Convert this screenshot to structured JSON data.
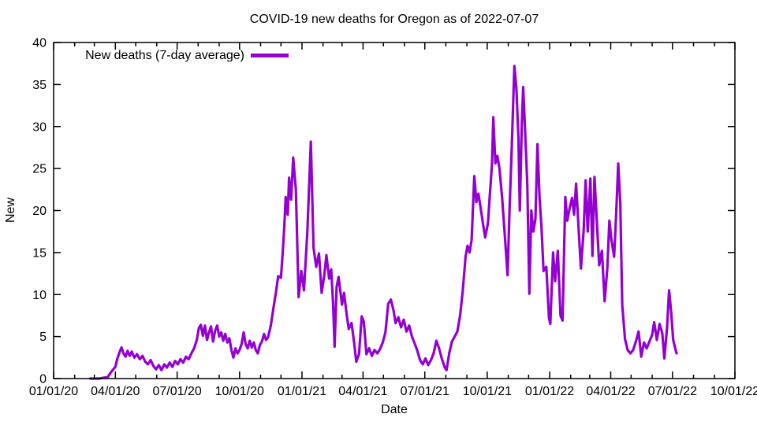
{
  "window": {
    "background": "#ffffff"
  },
  "colors": {
    "series": "#9400d3",
    "axis": "#000000",
    "text": "#000000"
  },
  "chart_data": {
    "type": "line",
    "title": "COVID-19 new deaths for Oregon as of 2022-07-07",
    "xlabel": "Date",
    "ylabel": "New",
    "grid": false,
    "legend_position": "top-left-inside",
    "legend_entries": [
      "New deaths (7-day average)"
    ],
    "x_range": [
      "2020-01-01",
      "2022-10-01"
    ],
    "ylim": [
      0,
      40
    ],
    "y_tick_step": 5,
    "y_tick_labels": [
      "0",
      "5",
      "10",
      "15",
      "20",
      "25",
      "30",
      "35",
      "40"
    ],
    "x_major_tick_labels": [
      "01/01/20",
      "04/01/20",
      "07/01/20",
      "10/01/20",
      "01/01/21",
      "04/01/21",
      "07/01/21",
      "10/01/21",
      "01/01/22",
      "04/01/22",
      "07/01/22",
      "10/01/22"
    ],
    "x_minor_tick_interval": "1 month",
    "series": [
      {
        "name": "New deaths (7-day average)",
        "color": "#9400d3",
        "points": [
          [
            "2020-02-24",
            0
          ],
          [
            "2020-03-08",
            0
          ],
          [
            "2020-03-21",
            0.2
          ],
          [
            "2020-03-25",
            0.7
          ],
          [
            "2020-03-29",
            1.1
          ],
          [
            "2020-04-01",
            1.4
          ],
          [
            "2020-04-04",
            2.4
          ],
          [
            "2020-04-07",
            3.1
          ],
          [
            "2020-04-10",
            3.7
          ],
          [
            "2020-04-13",
            3.0
          ],
          [
            "2020-04-16",
            2.6
          ],
          [
            "2020-04-19",
            3.3
          ],
          [
            "2020-04-22",
            2.7
          ],
          [
            "2020-04-25",
            3.2
          ],
          [
            "2020-04-29",
            2.5
          ],
          [
            "2020-05-03",
            2.9
          ],
          [
            "2020-05-07",
            2.3
          ],
          [
            "2020-05-11",
            2.7
          ],
          [
            "2020-05-15",
            2.0
          ],
          [
            "2020-05-19",
            1.7
          ],
          [
            "2020-05-23",
            2.2
          ],
          [
            "2020-05-27",
            1.5
          ],
          [
            "2020-05-31",
            1.1
          ],
          [
            "2020-06-04",
            1.6
          ],
          [
            "2020-06-08",
            1.0
          ],
          [
            "2020-06-12",
            1.7
          ],
          [
            "2020-06-16",
            1.3
          ],
          [
            "2020-06-20",
            1.9
          ],
          [
            "2020-06-24",
            1.4
          ],
          [
            "2020-06-28",
            2.1
          ],
          [
            "2020-07-02",
            1.7
          ],
          [
            "2020-07-06",
            2.3
          ],
          [
            "2020-07-10",
            1.9
          ],
          [
            "2020-07-14",
            2.6
          ],
          [
            "2020-07-18",
            2.3
          ],
          [
            "2020-07-22",
            3.0
          ],
          [
            "2020-07-26",
            3.6
          ],
          [
            "2020-07-30",
            4.6
          ],
          [
            "2020-08-02",
            6.0
          ],
          [
            "2020-08-05",
            6.4
          ],
          [
            "2020-08-08",
            5.1
          ],
          [
            "2020-08-11",
            6.3
          ],
          [
            "2020-08-14",
            4.6
          ],
          [
            "2020-08-17",
            5.5
          ],
          [
            "2020-08-20",
            6.2
          ],
          [
            "2020-08-23",
            4.4
          ],
          [
            "2020-08-26",
            5.7
          ],
          [
            "2020-08-29",
            6.3
          ],
          [
            "2020-09-01",
            5.0
          ],
          [
            "2020-09-04",
            5.5
          ],
          [
            "2020-09-07",
            4.5
          ],
          [
            "2020-09-10",
            5.3
          ],
          [
            "2020-09-13",
            4.3
          ],
          [
            "2020-09-16",
            4.8
          ],
          [
            "2020-09-19",
            3.4
          ],
          [
            "2020-09-22",
            2.5
          ],
          [
            "2020-09-25",
            3.6
          ],
          [
            "2020-09-28",
            3.0
          ],
          [
            "2020-10-01",
            3.4
          ],
          [
            "2020-10-04",
            4.1
          ],
          [
            "2020-10-07",
            5.5
          ],
          [
            "2020-10-10",
            4.1
          ],
          [
            "2020-10-13",
            3.6
          ],
          [
            "2020-10-16",
            4.5
          ],
          [
            "2020-10-19",
            3.7
          ],
          [
            "2020-10-22",
            4.3
          ],
          [
            "2020-10-25",
            3.4
          ],
          [
            "2020-10-28",
            3.0
          ],
          [
            "2020-10-31",
            4.0
          ],
          [
            "2020-11-03",
            4.4
          ],
          [
            "2020-11-06",
            5.3
          ],
          [
            "2020-11-09",
            4.6
          ],
          [
            "2020-11-12",
            4.9
          ],
          [
            "2020-11-16",
            6.3
          ],
          [
            "2020-11-20",
            8.4
          ],
          [
            "2020-11-24",
            10.5
          ],
          [
            "2020-11-27",
            12.2
          ],
          [
            "2020-12-01",
            12.0
          ],
          [
            "2020-12-04",
            15.5
          ],
          [
            "2020-12-06",
            18.2
          ],
          [
            "2020-12-08",
            21.6
          ],
          [
            "2020-12-11",
            19.5
          ],
          [
            "2020-12-13",
            23.9
          ],
          [
            "2020-12-16",
            21.3
          ],
          [
            "2020-12-19",
            26.3
          ],
          [
            "2020-12-23",
            22.5
          ],
          [
            "2020-12-27",
            9.7
          ],
          [
            "2020-12-31",
            12.8
          ],
          [
            "2021-01-04",
            10.5
          ],
          [
            "2021-01-09",
            17.5
          ],
          [
            "2021-01-14",
            28.2
          ],
          [
            "2021-01-18",
            15.6
          ],
          [
            "2021-01-22",
            13.3
          ],
          [
            "2021-01-26",
            14.9
          ],
          [
            "2021-01-30",
            10.2
          ],
          [
            "2021-02-03",
            12.4
          ],
          [
            "2021-02-06",
            14.7
          ],
          [
            "2021-02-10",
            11.9
          ],
          [
            "2021-02-13",
            13.0
          ],
          [
            "2021-02-16",
            8.8
          ],
          [
            "2021-02-18",
            3.8
          ],
          [
            "2021-02-21",
            10.9
          ],
          [
            "2021-02-24",
            12.1
          ],
          [
            "2021-03-01",
            8.8
          ],
          [
            "2021-03-04",
            10.2
          ],
          [
            "2021-03-08",
            7.5
          ],
          [
            "2021-03-11",
            5.9
          ],
          [
            "2021-03-15",
            6.6
          ],
          [
            "2021-03-19",
            4.2
          ],
          [
            "2021-03-22",
            2.0
          ],
          [
            "2021-03-26",
            2.9
          ],
          [
            "2021-03-30",
            7.4
          ],
          [
            "2021-04-02",
            6.8
          ],
          [
            "2021-04-06",
            2.9
          ],
          [
            "2021-04-10",
            3.6
          ],
          [
            "2021-04-14",
            2.7
          ],
          [
            "2021-04-18",
            3.4
          ],
          [
            "2021-04-22",
            3.0
          ],
          [
            "2021-04-26",
            3.5
          ],
          [
            "2021-04-30",
            4.3
          ],
          [
            "2021-05-04",
            5.5
          ],
          [
            "2021-05-08",
            8.9
          ],
          [
            "2021-05-12",
            9.4
          ],
          [
            "2021-05-16",
            8.1
          ],
          [
            "2021-05-19",
            6.6
          ],
          [
            "2021-05-23",
            7.3
          ],
          [
            "2021-05-27",
            6.1
          ],
          [
            "2021-05-31",
            7.0
          ],
          [
            "2021-06-04",
            5.6
          ],
          [
            "2021-06-08",
            6.3
          ],
          [
            "2021-06-12",
            5.0
          ],
          [
            "2021-06-16",
            4.2
          ],
          [
            "2021-06-20",
            3.3
          ],
          [
            "2021-06-24",
            2.2
          ],
          [
            "2021-06-28",
            1.7
          ],
          [
            "2021-07-02",
            2.4
          ],
          [
            "2021-07-06",
            1.6
          ],
          [
            "2021-07-10",
            2.2
          ],
          [
            "2021-07-14",
            3.0
          ],
          [
            "2021-07-18",
            4.5
          ],
          [
            "2021-07-22",
            3.6
          ],
          [
            "2021-07-26",
            2.4
          ],
          [
            "2021-07-30",
            1.4
          ],
          [
            "2021-08-02",
            1.0
          ],
          [
            "2021-08-06",
            3.0
          ],
          [
            "2021-08-10",
            4.4
          ],
          [
            "2021-08-14",
            5.0
          ],
          [
            "2021-08-18",
            5.6
          ],
          [
            "2021-08-22",
            7.5
          ],
          [
            "2021-08-26",
            10.5
          ],
          [
            "2021-08-30",
            14.5
          ],
          [
            "2021-09-02",
            15.8
          ],
          [
            "2021-09-05",
            15.0
          ],
          [
            "2021-09-08",
            16.5
          ],
          [
            "2021-09-12",
            24.1
          ],
          [
            "2021-09-15",
            21.0
          ],
          [
            "2021-09-18",
            22.0
          ],
          [
            "2021-09-21",
            20.5
          ],
          [
            "2021-09-25",
            18.3
          ],
          [
            "2021-09-28",
            16.8
          ],
          [
            "2021-10-02",
            18.5
          ],
          [
            "2021-10-05",
            22.0
          ],
          [
            "2021-10-08",
            25.5
          ],
          [
            "2021-10-10",
            31.1
          ],
          [
            "2021-10-13",
            25.6
          ],
          [
            "2021-10-16",
            26.5
          ],
          [
            "2021-10-19",
            25.0
          ],
          [
            "2021-10-23",
            21.5
          ],
          [
            "2021-10-27",
            16.9
          ],
          [
            "2021-10-31",
            12.3
          ],
          [
            "2021-11-03",
            20.5
          ],
          [
            "2021-11-06",
            27.2
          ],
          [
            "2021-11-10",
            37.2
          ],
          [
            "2021-11-13",
            34.5
          ],
          [
            "2021-11-16",
            28.5
          ],
          [
            "2021-11-18",
            20.0
          ],
          [
            "2021-11-21",
            30.5
          ],
          [
            "2021-11-23",
            34.7
          ],
          [
            "2021-11-26",
            29.1
          ],
          [
            "2021-11-29",
            23.2
          ],
          [
            "2021-12-02",
            10.1
          ],
          [
            "2021-12-05",
            20.0
          ],
          [
            "2021-12-08",
            17.5
          ],
          [
            "2021-12-11",
            19.0
          ],
          [
            "2021-12-14",
            27.9
          ],
          [
            "2021-12-17",
            21.6
          ],
          [
            "2021-12-20",
            18.0
          ],
          [
            "2021-12-23",
            12.8
          ],
          [
            "2021-12-27",
            13.3
          ],
          [
            "2021-12-31",
            7.2
          ],
          [
            "2022-01-02",
            6.5
          ],
          [
            "2022-01-06",
            15.0
          ],
          [
            "2022-01-09",
            11.6
          ],
          [
            "2022-01-13",
            15.2
          ],
          [
            "2022-01-17",
            7.5
          ],
          [
            "2022-01-20",
            6.9
          ],
          [
            "2022-01-24",
            21.6
          ],
          [
            "2022-01-27",
            18.8
          ],
          [
            "2022-01-31",
            20.5
          ],
          [
            "2022-02-03",
            21.5
          ],
          [
            "2022-02-06",
            19.5
          ],
          [
            "2022-02-09",
            23.2
          ],
          [
            "2022-02-13",
            17.3
          ],
          [
            "2022-02-16",
            13.1
          ],
          [
            "2022-02-20",
            17.5
          ],
          [
            "2022-02-23",
            23.6
          ],
          [
            "2022-02-26",
            17.5
          ],
          [
            "2022-03-02",
            23.8
          ],
          [
            "2022-03-05",
            14.6
          ],
          [
            "2022-03-08",
            24.0
          ],
          [
            "2022-03-12",
            18.0
          ],
          [
            "2022-03-15",
            13.5
          ],
          [
            "2022-03-19",
            15.2
          ],
          [
            "2022-03-23",
            9.2
          ],
          [
            "2022-03-27",
            13.2
          ],
          [
            "2022-03-30",
            18.8
          ],
          [
            "2022-04-02",
            16.5
          ],
          [
            "2022-04-06",
            14.5
          ],
          [
            "2022-04-09",
            19.5
          ],
          [
            "2022-04-12",
            25.6
          ],
          [
            "2022-04-15",
            21.0
          ],
          [
            "2022-04-18",
            8.8
          ],
          [
            "2022-04-22",
            4.7
          ],
          [
            "2022-04-26",
            3.4
          ],
          [
            "2022-04-30",
            3.0
          ],
          [
            "2022-05-04",
            3.4
          ],
          [
            "2022-05-08",
            4.4
          ],
          [
            "2022-05-12",
            5.6
          ],
          [
            "2022-05-16",
            2.6
          ],
          [
            "2022-05-20",
            4.3
          ],
          [
            "2022-05-24",
            3.6
          ],
          [
            "2022-05-28",
            4.4
          ],
          [
            "2022-06-01",
            5.2
          ],
          [
            "2022-06-04",
            6.7
          ],
          [
            "2022-06-08",
            4.6
          ],
          [
            "2022-06-12",
            6.5
          ],
          [
            "2022-06-16",
            5.4
          ],
          [
            "2022-06-19",
            2.4
          ],
          [
            "2022-06-23",
            6.0
          ],
          [
            "2022-06-26",
            10.5
          ],
          [
            "2022-06-29",
            8.0
          ],
          [
            "2022-07-02",
            4.6
          ],
          [
            "2022-07-05",
            3.6
          ],
          [
            "2022-07-07",
            3.0
          ]
        ]
      }
    ]
  }
}
